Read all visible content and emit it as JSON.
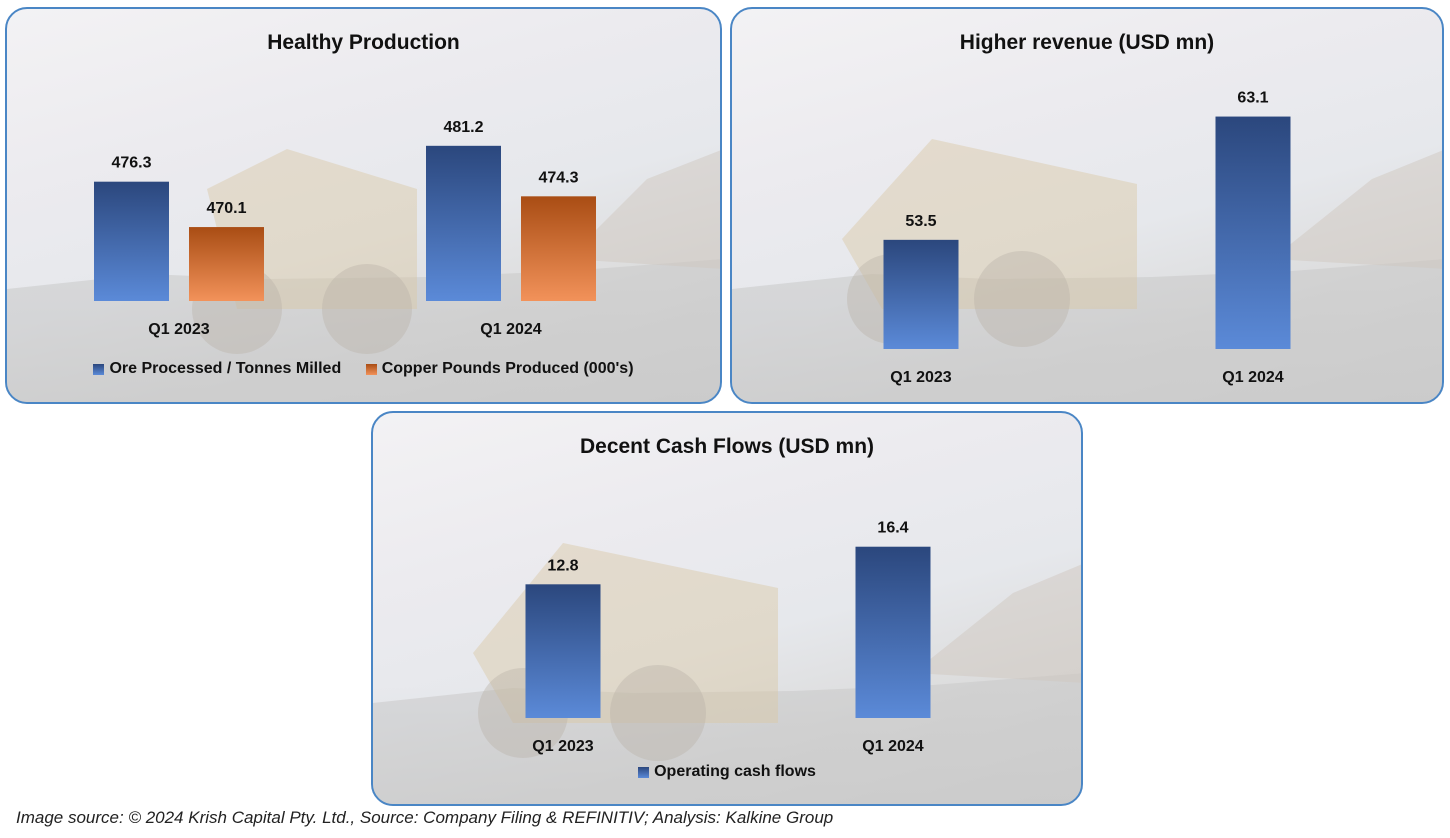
{
  "colors": {
    "panel_border": "#4a86c5",
    "blue_top": "#2b477d",
    "blue_bottom": "#5b8ad8",
    "orange_top": "#a94d14",
    "orange_bottom": "#f2925a"
  },
  "chart_data": [
    {
      "type": "bar",
      "title": "Healthy Production",
      "categories": [
        "Q1 2023",
        "Q1 2024"
      ],
      "series": [
        {
          "name": "Ore Processed / Tonnes Milled",
          "values": [
            476.3,
            481.2
          ],
          "labels": [
            "476.3",
            "481.2"
          ],
          "color": "blue"
        },
        {
          "name": "Copper Pounds Produced (000's)",
          "values": [
            470.1,
            474.3
          ],
          "labels": [
            "470.1",
            "474.3"
          ],
          "color": "orange"
        }
      ],
      "ylim": [
        460,
        485
      ],
      "grid": false,
      "legend": "bottom"
    },
    {
      "type": "bar",
      "title": "Higher revenue (USD mn)",
      "categories": [
        "Q1 2023",
        "Q1 2024"
      ],
      "series": [
        {
          "name": "Revenue",
          "values": [
            53.5,
            63.1
          ],
          "labels": [
            "53.5",
            "63.1"
          ],
          "color": "blue"
        }
      ],
      "ylim": [
        45,
        64
      ],
      "grid": false,
      "legend": "none"
    },
    {
      "type": "bar",
      "title": "Decent Cash Flows (USD mn)",
      "categories": [
        "Q1 2023",
        "Q1 2024"
      ],
      "series": [
        {
          "name": "Operating cash flows",
          "values": [
            12.8,
            16.4
          ],
          "labels": [
            "12.8",
            "16.4"
          ],
          "color": "blue"
        }
      ],
      "ylim": [
        0,
        18
      ],
      "grid": false,
      "legend": "bottom"
    }
  ],
  "footer": "Image source: © 2024 Krish Capital Pty. Ltd., Source: Company Filing & REFINITIV; Analysis: Kalkine Group"
}
